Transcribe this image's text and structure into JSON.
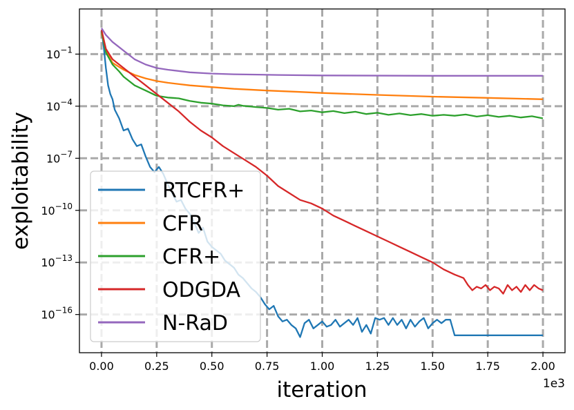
{
  "chart_data": {
    "type": "line",
    "title": "",
    "xlabel": "iteration",
    "ylabel": "exploitability",
    "x_offset_label": "1e3",
    "xlim": [
      -0.1,
      2.1
    ],
    "xticks": [
      0.0,
      0.25,
      0.5,
      0.75,
      1.0,
      1.25,
      1.5,
      1.75,
      2.0
    ],
    "xtick_labels": [
      "0.00",
      "0.25",
      "0.50",
      "0.75",
      "1.00",
      "1.25",
      "1.50",
      "1.75",
      "2.00"
    ],
    "yscale": "log",
    "ylim_log10": [
      -18.2,
      1.6
    ],
    "yticks_log10": [
      -1,
      -4,
      -7,
      -10,
      -13,
      -16
    ],
    "ytick_labels": [
      {
        "base": "10",
        "exp": "−1"
      },
      {
        "base": "10",
        "exp": "−4"
      },
      {
        "base": "10",
        "exp": "−7"
      },
      {
        "base": "10",
        "exp": "−10"
      },
      {
        "base": "10",
        "exp": "−13"
      },
      {
        "base": "10",
        "exp": "−16"
      }
    ],
    "grid": true,
    "legend_position": "lower-left",
    "x_units_note": "x values in thousands of iterations; y values are log10(exploitability)",
    "series": [
      {
        "name": "RTCFR+",
        "color": "#1f77b4",
        "x": [
          0,
          0.01,
          0.02,
          0.03,
          0.04,
          0.05,
          0.06,
          0.08,
          0.1,
          0.12,
          0.14,
          0.16,
          0.18,
          0.2,
          0.22,
          0.24,
          0.26,
          0.28,
          0.3,
          0.32,
          0.34,
          0.36,
          0.38,
          0.4,
          0.42,
          0.44,
          0.46,
          0.48,
          0.5,
          0.52,
          0.54,
          0.56,
          0.58,
          0.6,
          0.62,
          0.64,
          0.66,
          0.68,
          0.7,
          0.72,
          0.74,
          0.76,
          0.78,
          0.8,
          0.82,
          0.84,
          0.86,
          0.88,
          0.9,
          0.92,
          0.94,
          0.96,
          0.98,
          1.0,
          1.02,
          1.04,
          1.06,
          1.08,
          1.1,
          1.12,
          1.14,
          1.16,
          1.18,
          1.2,
          1.22,
          1.24,
          1.26,
          1.28,
          1.3,
          1.32,
          1.34,
          1.36,
          1.38,
          1.4,
          1.42,
          1.44,
          1.46,
          1.48,
          1.5,
          1.52,
          1.54,
          1.56,
          1.58,
          1.6,
          2.0
        ],
        "y": [
          0.4,
          -0.6,
          -1.8,
          -2.8,
          -3.3,
          -3.6,
          -4.2,
          -4.7,
          -5.4,
          -5.3,
          -5.9,
          -6.3,
          -6.2,
          -6.9,
          -7.5,
          -7.8,
          -7.5,
          -7.9,
          -8.5,
          -9.0,
          -9.5,
          -9.4,
          -9.9,
          -10.2,
          -10.7,
          -11.3,
          -11.0,
          -11.8,
          -12.1,
          -12.3,
          -12.5,
          -12.9,
          -13.1,
          -13.3,
          -13.7,
          -13.9,
          -14.2,
          -14.5,
          -14.7,
          -15.0,
          -15.4,
          -15.7,
          -15.5,
          -16.1,
          -16.4,
          -16.3,
          -16.6,
          -16.8,
          -17.3,
          -16.5,
          -16.3,
          -16.8,
          -16.6,
          -16.4,
          -16.7,
          -16.6,
          -16.3,
          -16.7,
          -16.5,
          -16.3,
          -16.6,
          -16.2,
          -17.0,
          -16.6,
          -17.1,
          -16.2,
          -16.3,
          -16.2,
          -16.6,
          -16.2,
          -16.6,
          -16.3,
          -16.8,
          -16.3,
          -16.7,
          -16.4,
          -16.2,
          -16.8,
          -16.5,
          -16.3,
          -16.5,
          -16.3,
          -16.3,
          -17.2,
          -17.2
        ]
      },
      {
        "name": "CFR",
        "color": "#ff7f0e",
        "x": [
          0,
          0.02,
          0.05,
          0.1,
          0.15,
          0.2,
          0.25,
          0.3,
          0.4,
          0.5,
          0.6,
          0.75,
          0.9,
          1.0,
          1.25,
          1.5,
          1.75,
          2.0
        ],
        "y": [
          0.2,
          -0.8,
          -1.5,
          -1.9,
          -2.2,
          -2.4,
          -2.55,
          -2.65,
          -2.8,
          -2.9,
          -3.0,
          -3.1,
          -3.18,
          -3.24,
          -3.35,
          -3.45,
          -3.52,
          -3.6
        ]
      },
      {
        "name": "CFR+",
        "color": "#2ca02c",
        "x": [
          0,
          0.02,
          0.05,
          0.08,
          0.1,
          0.15,
          0.2,
          0.25,
          0.3,
          0.35,
          0.4,
          0.45,
          0.5,
          0.55,
          0.6,
          0.62,
          0.64,
          0.66,
          0.7,
          0.75,
          0.8,
          0.85,
          0.9,
          0.95,
          1.0,
          1.05,
          1.1,
          1.15,
          1.2,
          1.25,
          1.3,
          1.35,
          1.4,
          1.45,
          1.5,
          1.55,
          1.6,
          1.65,
          1.7,
          1.75,
          1.8,
          1.85,
          1.9,
          1.95,
          2.0
        ],
        "y": [
          0.3,
          -0.9,
          -1.6,
          -2.0,
          -2.3,
          -2.8,
          -3.1,
          -3.4,
          -3.5,
          -3.55,
          -3.7,
          -3.8,
          -3.85,
          -3.95,
          -4.0,
          -3.92,
          -3.98,
          -4.0,
          -4.05,
          -4.1,
          -4.2,
          -4.15,
          -4.3,
          -4.25,
          -4.35,
          -4.28,
          -4.4,
          -4.32,
          -4.45,
          -4.38,
          -4.5,
          -4.42,
          -4.52,
          -4.45,
          -4.55,
          -4.5,
          -4.55,
          -4.48,
          -4.6,
          -4.52,
          -4.62,
          -4.55,
          -4.65,
          -4.58,
          -4.7
        ]
      },
      {
        "name": "ODGDA",
        "color": "#d62728",
        "x": [
          0,
          0.02,
          0.05,
          0.1,
          0.15,
          0.2,
          0.25,
          0.3,
          0.35,
          0.4,
          0.45,
          0.5,
          0.55,
          0.6,
          0.65,
          0.7,
          0.75,
          0.8,
          0.85,
          0.9,
          0.95,
          1.0,
          1.05,
          1.1,
          1.15,
          1.2,
          1.25,
          1.3,
          1.35,
          1.4,
          1.45,
          1.5,
          1.55,
          1.6,
          1.62,
          1.64,
          1.66,
          1.68,
          1.7,
          1.72,
          1.74,
          1.76,
          1.78,
          1.8,
          1.82,
          1.84,
          1.86,
          1.88,
          1.9,
          1.92,
          1.94,
          1.96,
          1.98,
          2.0
        ],
        "y": [
          0.4,
          -0.7,
          -1.3,
          -1.8,
          -2.3,
          -2.8,
          -3.3,
          -3.8,
          -4.3,
          -4.9,
          -5.4,
          -5.8,
          -6.3,
          -6.7,
          -7.1,
          -7.5,
          -8.0,
          -8.6,
          -9.0,
          -9.4,
          -9.6,
          -9.9,
          -10.3,
          -10.6,
          -10.9,
          -11.2,
          -11.5,
          -11.8,
          -12.1,
          -12.4,
          -12.7,
          -13.0,
          -13.4,
          -13.7,
          -13.8,
          -13.9,
          -14.3,
          -14.6,
          -14.4,
          -14.5,
          -14.3,
          -14.6,
          -14.4,
          -14.5,
          -14.8,
          -14.3,
          -14.6,
          -14.4,
          -14.7,
          -14.3,
          -14.6,
          -14.3,
          -14.5,
          -14.6
        ]
      },
      {
        "name": "N-RaD",
        "color": "#9467bd",
        "x": [
          0,
          0.02,
          0.05,
          0.08,
          0.1,
          0.12,
          0.15,
          0.2,
          0.25,
          0.3,
          0.4,
          0.5,
          0.6,
          0.8,
          1.0,
          1.5,
          2.0
        ],
        "y": [
          0.5,
          0.1,
          -0.3,
          -0.6,
          -0.8,
          -1.0,
          -1.3,
          -1.6,
          -1.8,
          -1.9,
          -2.05,
          -2.12,
          -2.16,
          -2.2,
          -2.23,
          -2.25,
          -2.25
        ]
      }
    ]
  }
}
